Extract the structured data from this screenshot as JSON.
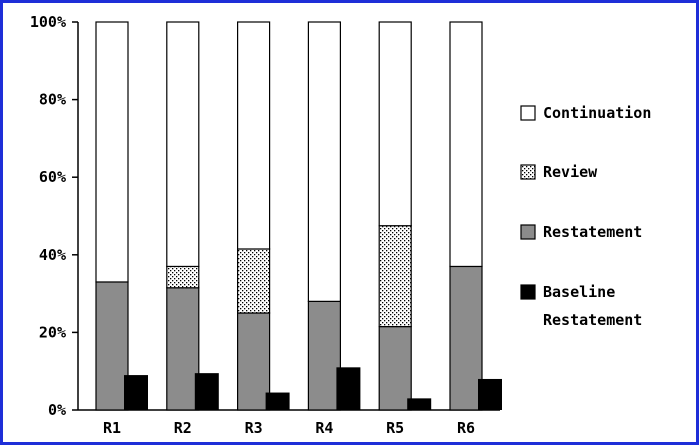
{
  "chart_data": {
    "type": "bar",
    "stacked": true,
    "categories": [
      "R1",
      "R2",
      "R3",
      "R4",
      "R5",
      "R6"
    ],
    "ylim": [
      0,
      100
    ],
    "yticks": [
      "0%",
      "20%",
      "40%",
      "60%",
      "80%",
      "100%"
    ],
    "stacked_series": [
      {
        "name": "Restatement",
        "color": "#8c8c8c",
        "pattern": "solid",
        "values": [
          33,
          31.5,
          25,
          28,
          21.5,
          37
        ]
      },
      {
        "name": "Review",
        "color": "#ffffff",
        "pattern": "dots",
        "values": [
          0,
          5.5,
          16.5,
          0,
          26,
          0
        ]
      },
      {
        "name": "Continuation",
        "color": "#ffffff",
        "pattern": "solid",
        "values": [
          67,
          63,
          58.5,
          72,
          52.5,
          63
        ]
      }
    ],
    "side_series": {
      "name": "Baseline Restatement",
      "color": "#000000",
      "values": [
        9,
        9.5,
        4.5,
        11,
        3,
        8
      ]
    },
    "legend": {
      "placement": "right",
      "items": [
        {
          "label": "Continuation",
          "swatch": "white"
        },
        {
          "label": "Review",
          "swatch": "dots"
        },
        {
          "label": "Restatement",
          "swatch": "gray"
        },
        {
          "label": "Baseline Restatement",
          "lines": [
            "Baseline",
            "Restatement"
          ],
          "swatch": "black"
        }
      ]
    },
    "grid": false
  }
}
